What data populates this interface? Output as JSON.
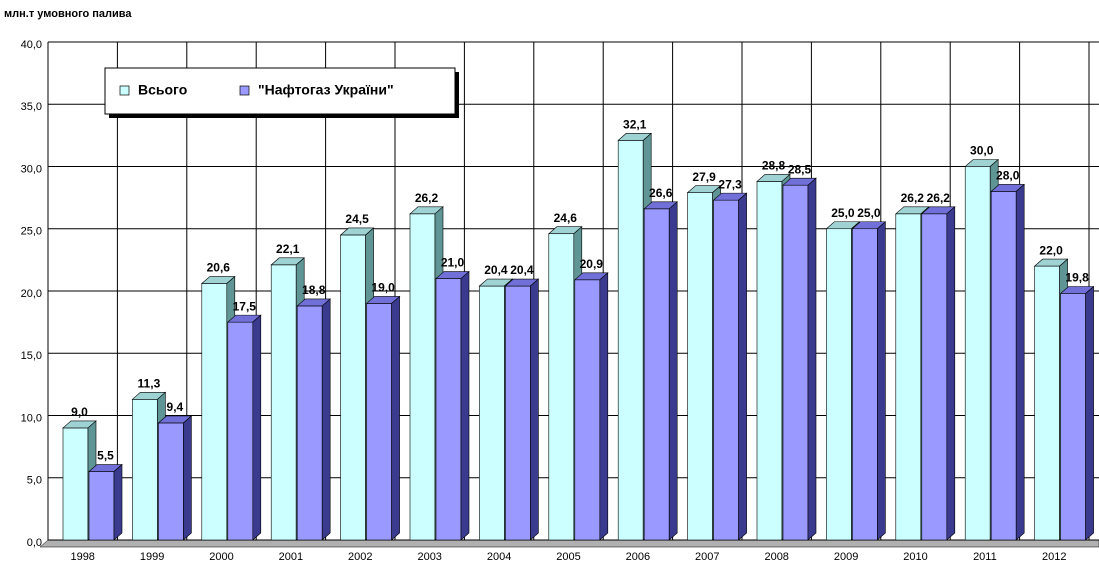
{
  "chart_data": {
    "type": "bar3d",
    "y_axis_label": "млн.т умовного палива",
    "categories": [
      "1998",
      "1999",
      "2000",
      "2001",
      "2002",
      "2003",
      "2004",
      "2005",
      "2006",
      "2007",
      "2008",
      "2009",
      "2010",
      "2011",
      "2012"
    ],
    "series": [
      {
        "name": "Всього",
        "color": "#ccffff",
        "values": [
          9.0,
          11.3,
          20.6,
          22.1,
          24.5,
          26.2,
          20.4,
          24.6,
          32.1,
          27.9,
          28.8,
          25.0,
          26.2,
          30.0,
          22.0
        ],
        "value_labels": [
          "9,0",
          "11,3",
          "20,6",
          "22,1",
          "24,5",
          "26,2",
          "20,4",
          "24,6",
          "32,1",
          "27,9",
          "28,8",
          "25,0",
          "26,2",
          "30,0",
          "22,0"
        ]
      },
      {
        "name": "\"Нафтогаз України\"",
        "color": "#9999ff",
        "values": [
          5.5,
          9.4,
          17.5,
          18.8,
          19.0,
          21.0,
          20.4,
          20.9,
          26.6,
          27.3,
          28.5,
          25.0,
          26.2,
          28.0,
          19.8
        ],
        "value_labels": [
          "5,5",
          "9,4",
          "17,5",
          "18,8",
          "19,0",
          "21,0",
          "20,4",
          "20,9",
          "26,6",
          "27,3",
          "28,5",
          "25,0",
          "26,2",
          "28,0",
          "19,8"
        ]
      }
    ],
    "ylim": [
      0,
      40
    ],
    "yticks": [
      {
        "value": 0,
        "label": "0,0"
      },
      {
        "value": 5,
        "label": "5,0"
      },
      {
        "value": 10,
        "label": "10,0"
      },
      {
        "value": 15,
        "label": "15,0"
      },
      {
        "value": 20,
        "label": "20,0"
      },
      {
        "value": 25,
        "label": "25,0"
      },
      {
        "value": 30,
        "label": "30,0"
      },
      {
        "value": 35,
        "label": "35,0"
      },
      {
        "value": 40,
        "label": "40,0"
      }
    ],
    "grid": true,
    "legend": "top-left"
  }
}
